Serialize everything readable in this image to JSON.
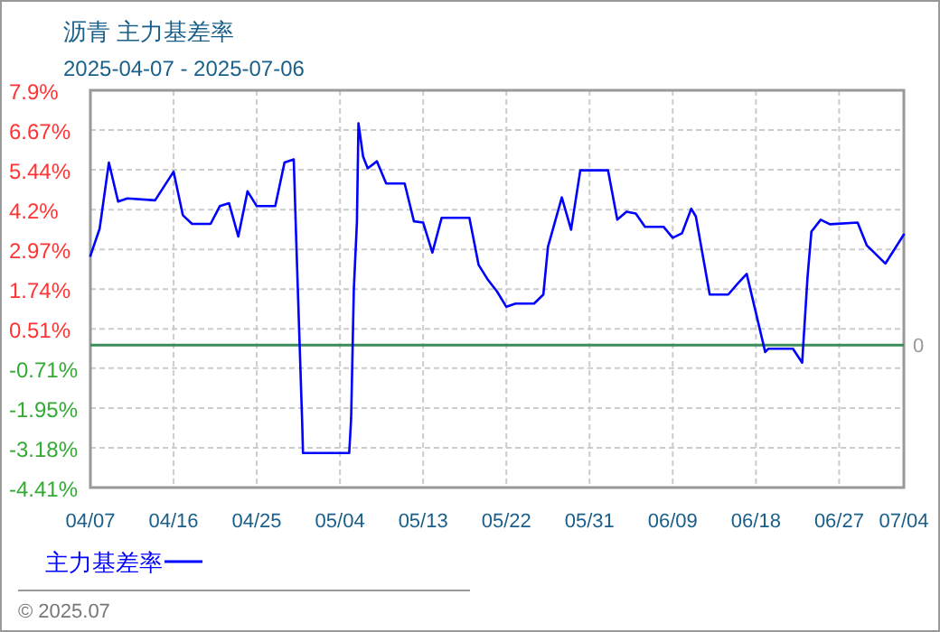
{
  "chart_data": {
    "type": "line",
    "title": "沥青  主力基差率",
    "subtitle": "2025-04-07 - 2025-07-06",
    "x": [
      "2025-04-07",
      "2025-04-08",
      "2025-04-09",
      "2025-04-10",
      "2025-04-11",
      "2025-04-14",
      "2025-04-16",
      "2025-04-17",
      "2025-04-18",
      "2025-04-20",
      "2025-04-21",
      "2025-04-22",
      "2025-04-23",
      "2025-04-24",
      "2025-04-25",
      "2025-04-27",
      "2025-04-28",
      "2025-04-29",
      "2025-04-29T07:00",
      "2025-04-29T22:00",
      "2025-04-30",
      "2025-05-05",
      "2025-05-05T05:00",
      "2025-05-05T12:00",
      "2025-05-05T20:00",
      "2025-05-06",
      "2025-05-06T12:00",
      "2025-05-07",
      "2025-05-08",
      "2025-05-09",
      "2025-05-11",
      "2025-05-12",
      "2025-05-13",
      "2025-05-14",
      "2025-05-15",
      "2025-05-18",
      "2025-05-19",
      "2025-05-20",
      "2025-05-21",
      "2025-05-22",
      "2025-05-23",
      "2025-05-25",
      "2025-05-26",
      "2025-05-26T12:00",
      "2025-05-28",
      "2025-05-29",
      "2025-05-30",
      "2025-06-02",
      "2025-06-03",
      "2025-06-04",
      "2025-06-05",
      "2025-06-06",
      "2025-06-08",
      "2025-06-09",
      "2025-06-10",
      "2025-06-11",
      "2025-06-11T12:00",
      "2025-06-13",
      "2025-06-15",
      "2025-06-16",
      "2025-06-17",
      "2025-06-19",
      "2025-06-19T08:00",
      "2025-06-22",
      "2025-06-23",
      "2025-06-23T14:00",
      "2025-06-24",
      "2025-06-25",
      "2025-06-26",
      "2025-06-29",
      "2025-06-30",
      "2025-07-02",
      "2025-07-04"
    ],
    "series": [
      {
        "name": "主力基差率",
        "color": "#0000ff",
        "values": [
          2.77,
          3.61,
          5.66,
          4.45,
          4.55,
          4.49,
          5.38,
          4.03,
          3.76,
          3.76,
          4.31,
          4.4,
          3.37,
          4.77,
          4.31,
          4.31,
          5.66,
          5.76,
          3.05,
          -2.44,
          -3.34,
          -3.34,
          -2.26,
          1.74,
          3.8,
          6.88,
          5.85,
          5.48,
          5.7,
          5.01,
          5.01,
          3.84,
          3.8,
          2.87,
          3.95,
          3.95,
          2.49,
          2.03,
          1.66,
          1.19,
          1.29,
          1.29,
          1.57,
          3.05,
          4.58,
          3.58,
          5.42,
          5.42,
          3.89,
          4.14,
          4.08,
          3.67,
          3.67,
          3.33,
          3.47,
          4.23,
          3.99,
          1.57,
          1.57,
          1.9,
          2.21,
          -0.21,
          -0.11,
          -0.11,
          -0.54,
          2.12,
          3.52,
          3.89,
          3.75,
          3.8,
          3.09,
          2.53,
          3.43
        ]
      }
    ],
    "xlim": [
      "2025-04-07",
      "2025-07-04"
    ],
    "xticks": [
      {
        "value": "2025-04-07",
        "label": "04/07"
      },
      {
        "value": "2025-04-16",
        "label": "04/16"
      },
      {
        "value": "2025-04-25",
        "label": "04/25"
      },
      {
        "value": "2025-05-04",
        "label": "05/04"
      },
      {
        "value": "2025-05-13",
        "label": "05/13"
      },
      {
        "value": "2025-05-22",
        "label": "05/22"
      },
      {
        "value": "2025-05-31",
        "label": "05/31"
      },
      {
        "value": "2025-06-09",
        "label": "06/09"
      },
      {
        "value": "2025-06-18",
        "label": "06/18"
      },
      {
        "value": "2025-06-27",
        "label": "06/27"
      },
      {
        "value": "2025-07-04",
        "label": "07/04"
      }
    ],
    "ylim": [
      -4.41,
      7.9
    ],
    "yticks": [
      {
        "value": 7.9,
        "label": "7.9%"
      },
      {
        "value": 6.67,
        "label": "6.67%"
      },
      {
        "value": 5.44,
        "label": "5.44%"
      },
      {
        "value": 4.2,
        "label": "4.2%"
      },
      {
        "value": 2.97,
        "label": "2.97%"
      },
      {
        "value": 1.74,
        "label": "1.74%"
      },
      {
        "value": 0.51,
        "label": "0.51%"
      },
      {
        "value": -0.71,
        "label": "-0.71%"
      },
      {
        "value": -1.95,
        "label": "-1.95%"
      },
      {
        "value": -3.18,
        "label": "-3.18%"
      },
      {
        "value": -4.41,
        "label": "-4.41%"
      }
    ],
    "grid": true,
    "legend": "bottom left",
    "ref_lines": [
      {
        "axis": "y",
        "value": 0,
        "label": "0",
        "color": "#3c8c5a"
      }
    ],
    "annotations": [
      "© 2025.07"
    ]
  }
}
